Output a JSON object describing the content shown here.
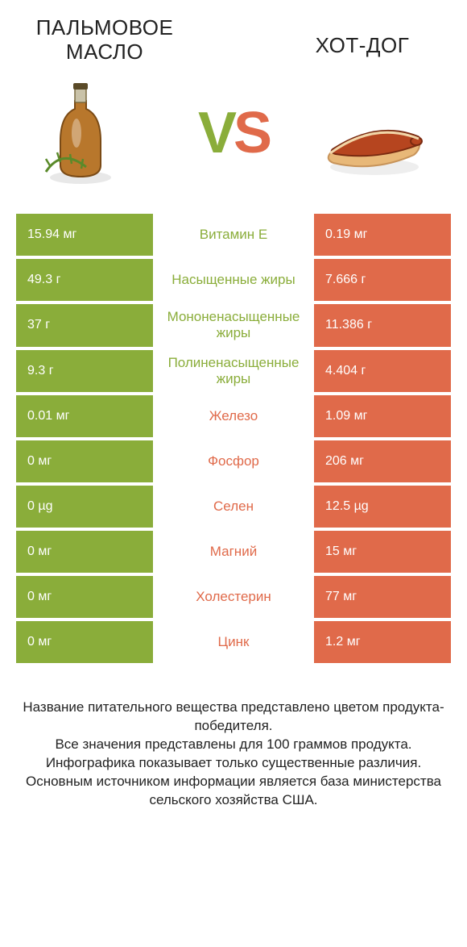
{
  "colors": {
    "left": "#8aad3a",
    "right": "#e06a4a",
    "bg": "#ffffff",
    "text": "#222222",
    "value_text": "#ffffff"
  },
  "fonts": {
    "title_size": 26,
    "vs_size": 72,
    "row_size": 16,
    "label_size": 17,
    "footer_size": 17
  },
  "left_product": {
    "title": "ПАЛЬМОВОЕ МАСЛО"
  },
  "right_product": {
    "title": "ХОТ-ДОГ"
  },
  "vs": {
    "v": "V",
    "s": "S"
  },
  "rows": [
    {
      "label": "Витамин E",
      "left": "15.94 мг",
      "right": "0.19 мг",
      "winner": "left"
    },
    {
      "label": "Насыщенные жиры",
      "left": "49.3 г",
      "right": "7.666 г",
      "winner": "left"
    },
    {
      "label": "Мононенасыщенные жиры",
      "left": "37 г",
      "right": "11.386 г",
      "winner": "left"
    },
    {
      "label": "Полиненасыщенные жиры",
      "left": "9.3 г",
      "right": "4.404 г",
      "winner": "left"
    },
    {
      "label": "Железо",
      "left": "0.01 мг",
      "right": "1.09 мг",
      "winner": "right"
    },
    {
      "label": "Фосфор",
      "left": "0 мг",
      "right": "206 мг",
      "winner": "right"
    },
    {
      "label": "Селен",
      "left": "0 µg",
      "right": "12.5 µg",
      "winner": "right"
    },
    {
      "label": "Магний",
      "left": "0 мг",
      "right": "15 мг",
      "winner": "right"
    },
    {
      "label": "Холестерин",
      "left": "0 мг",
      "right": "77 мг",
      "winner": "right"
    },
    {
      "label": "Цинк",
      "left": "0 мг",
      "right": "1.2 мг",
      "winner": "right"
    }
  ],
  "footer": {
    "l1": "Название питательного вещества представлено цветом продукта-победителя.",
    "l2": "Все значения представлены для 100 граммов продукта.",
    "l3": "Инфографика показывает только существенные различия.",
    "l4": "Основным источником информации является база министерства сельского хозяйства США."
  }
}
